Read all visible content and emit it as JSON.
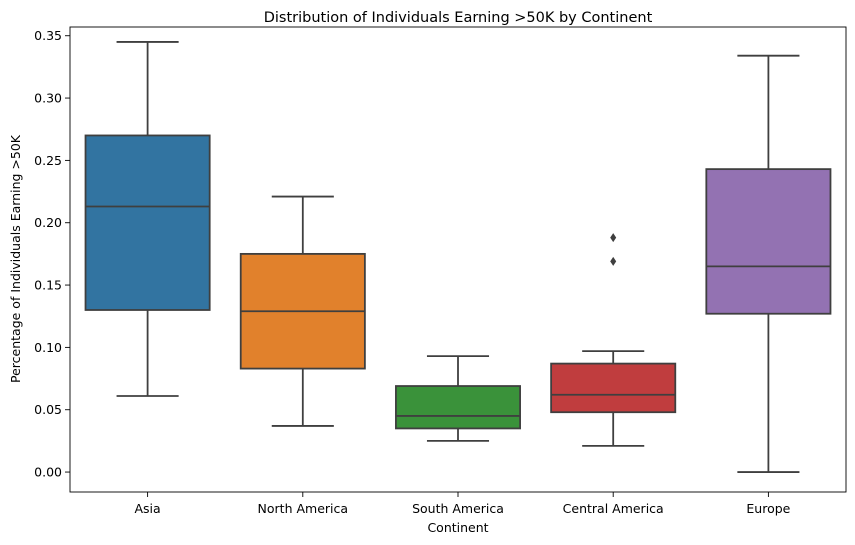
{
  "chart_data": {
    "type": "box",
    "title": "Distribution of Individuals Earning >50K by Continent",
    "xlabel": "Continent",
    "ylabel": "Percentage of Individuals Earning >50K",
    "ylim": [
      -0.016,
      0.357
    ],
    "yticks": [
      "0.00",
      "0.05",
      "0.10",
      "0.15",
      "0.20",
      "0.25",
      "0.30",
      "0.35"
    ],
    "grid": false,
    "legend": "none",
    "categories": [
      "Asia",
      "North America",
      "South America",
      "Central America",
      "Europe"
    ],
    "colors": [
      "#3274a1",
      "#e1812c",
      "#3a923a",
      "#c03d3e",
      "#9372b2"
    ],
    "boxes": [
      {
        "whisker_low": 0.061,
        "q1": 0.13,
        "median": 0.213,
        "q3": 0.27,
        "whisker_high": 0.345,
        "outliers": []
      },
      {
        "whisker_low": 0.037,
        "q1": 0.083,
        "median": 0.129,
        "q3": 0.175,
        "whisker_high": 0.221,
        "outliers": []
      },
      {
        "whisker_low": 0.025,
        "q1": 0.035,
        "median": 0.045,
        "q3": 0.069,
        "whisker_high": 0.093,
        "outliers": []
      },
      {
        "whisker_low": 0.021,
        "q1": 0.048,
        "median": 0.062,
        "q3": 0.087,
        "whisker_high": 0.097,
        "outliers": [
          0.169,
          0.188
        ]
      },
      {
        "whisker_low": 0.0,
        "q1": 0.127,
        "median": 0.165,
        "q3": 0.243,
        "whisker_high": 0.334,
        "outliers": []
      }
    ]
  }
}
